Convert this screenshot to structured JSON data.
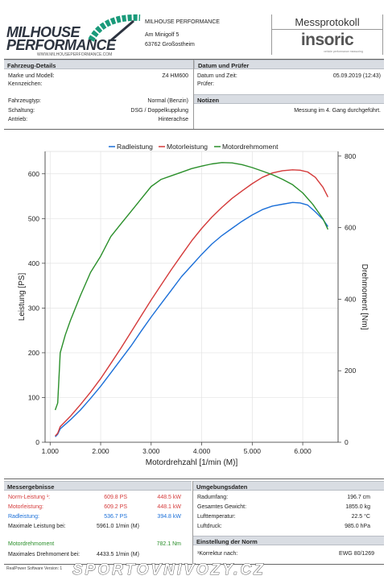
{
  "header": {
    "logo_line1": "MILHOUSE",
    "logo_line2": "PERFORMANCE",
    "logo_url": "WWW.MILHOUSEPERFORMANCE.COM",
    "company": "MILHOUSE PERFORMANCE",
    "street": "Am Minigolf 5",
    "city": "63762 Großostheim",
    "protocol_title": "Messprotokoll",
    "brand": "insoric",
    "brand_sub": "vehicle performance measuring"
  },
  "vehicle": {
    "section_title": "Fahrzeug-Details",
    "make_label": "Marke und Modell:",
    "make_value": "Z4 HM600",
    "plate_label": "Kennzeichen:",
    "type_label": "Fahrzeugtyp:",
    "type_value": "Normal (Benzin)",
    "gear_label": "Schaltung:",
    "gear_value": "DSG / Doppelkupplung",
    "drive_label": "Antrieb:",
    "drive_value": "Hinterachse"
  },
  "date": {
    "section_title": "Datum und Prüfer",
    "date_label": "Datum und Zeit:",
    "date_value": "05.09.2019 (12:43)",
    "tester_label": "Prüfer:"
  },
  "notes": {
    "section_title": "Notizen",
    "text": "Messung im 4. Gang durchgeführt."
  },
  "chart_data": {
    "type": "line",
    "legend": [
      "Radleistung",
      "Motorleistung",
      "Motordrehmoment"
    ],
    "colors": {
      "Radleistung": "#1b6fd8",
      "Motorleistung": "#d43a3a",
      "Motordrehmoment": "#2a8f2a"
    },
    "xlabel": "Motordrehzahl [1/min (M)]",
    "ylabel": "Leistung [PS]",
    "y2label": "Drehmoment [Nm]",
    "xlim": [
      900,
      6700
    ],
    "ylim": [
      0,
      650
    ],
    "y2lim": [
      0,
      813
    ],
    "xticks": [
      1000,
      2000,
      3000,
      4000,
      5000,
      6000
    ],
    "xtick_labels": [
      "1.000",
      "2.000",
      "3.000",
      "4.000",
      "5.000",
      "6.000"
    ],
    "yticks": [
      0,
      100,
      200,
      300,
      400,
      500,
      600
    ],
    "y2ticks": [
      0,
      200,
      400,
      600,
      800
    ],
    "legend_position": "top",
    "series": [
      {
        "name": "Radleistung",
        "axis": "left",
        "x": [
          1100,
          1150,
          1200,
          1400,
          1600,
          1800,
          2000,
          2200,
          2400,
          2600,
          2800,
          3000,
          3200,
          3400,
          3600,
          3800,
          4000,
          4200,
          4400,
          4600,
          4800,
          5000,
          5200,
          5400,
          5600,
          5800,
          5950,
          6100,
          6250,
          6400,
          6500
        ],
        "y": [
          12,
          18,
          30,
          50,
          72,
          98,
          125,
          155,
          185,
          215,
          248,
          280,
          310,
          340,
          370,
          395,
          420,
          443,
          462,
          478,
          494,
          508,
          520,
          528,
          532,
          536,
          535,
          530,
          515,
          498,
          482
        ]
      },
      {
        "name": "Motorleistung",
        "axis": "left",
        "x": [
          1100,
          1150,
          1200,
          1400,
          1600,
          1800,
          2000,
          2200,
          2400,
          2600,
          2800,
          3000,
          3200,
          3400,
          3600,
          3800,
          4000,
          4200,
          4400,
          4600,
          4800,
          5000,
          5200,
          5400,
          5600,
          5800,
          5950,
          6100,
          6250,
          6400,
          6500
        ],
        "y": [
          14,
          20,
          35,
          58,
          84,
          112,
          142,
          176,
          210,
          246,
          282,
          318,
          352,
          386,
          418,
          450,
          478,
          503,
          525,
          545,
          562,
          578,
          592,
          602,
          607,
          609,
          608,
          604,
          592,
          570,
          548
        ]
      },
      {
        "name": "Motordrehmoment",
        "axis": "right",
        "x": [
          1100,
          1150,
          1200,
          1300,
          1400,
          1600,
          1800,
          2000,
          2200,
          2400,
          2600,
          2800,
          3000,
          3200,
          3400,
          3600,
          3800,
          4000,
          4200,
          4400,
          4600,
          4800,
          5000,
          5200,
          5400,
          5600,
          5800,
          6000,
          6200,
          6400,
          6500
        ],
        "y": [
          90,
          110,
          250,
          300,
          340,
          410,
          475,
          520,
          575,
          610,
          645,
          680,
          715,
          735,
          745,
          755,
          765,
          772,
          778,
          782,
          781,
          776,
          768,
          758,
          748,
          735,
          720,
          697,
          665,
          625,
          595
        ]
      }
    ]
  },
  "results": {
    "section_title": "Messergebnisse",
    "norm_label": "Norm-Leistung ¹:",
    "norm_ps": "609.8 PS",
    "norm_kw": "448.5 kW",
    "motor_label": "Motorleistung:",
    "motor_ps": "609.2 PS",
    "motor_kw": "448.1 kW",
    "wheel_label": "Radleistung:",
    "wheel_ps": "536.7 PS",
    "wheel_kw": "394.8 kW",
    "maxp_label": "Maximale Leistung bei:",
    "maxp_value": "5961.0 1/min (M)",
    "torque_label": "Motordrehmoment",
    "torque_value": "782.1 Nm",
    "maxt_label": "Maximales Drehmoment bei:",
    "maxt_value": "4433.5 1/min (M)"
  },
  "env": {
    "section_title": "Umgebungsdaten",
    "wheel_label": "Radumfang:",
    "wheel_value": "196.7 cm",
    "weight_label": "Gesamtes Gewicht:",
    "weight_value": "1855.0 kg",
    "temp_label": "Lufttemperatur:",
    "temp_value": "22.5 °C",
    "pressure_label": "Luftdruck:",
    "pressure_value": "985.0 hPa"
  },
  "norm": {
    "section_title": "Einstellung der Norm",
    "corr_label": "¹Korrektur nach:",
    "corr_value": "EWG 80/1269"
  },
  "footer": {
    "software": "RealPower Software Version: 1",
    "watermark": "SPORTOVNIVOZY.CZ"
  }
}
